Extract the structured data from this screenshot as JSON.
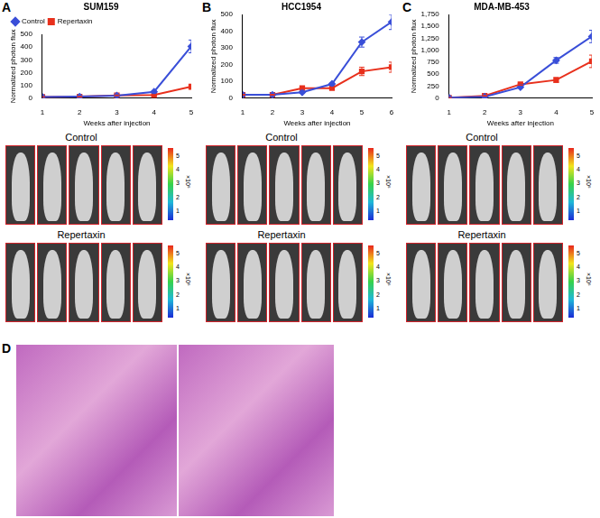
{
  "chart_data": [
    {
      "panel": "A",
      "type": "line",
      "title": "SUM159",
      "x_label": "Weeks after injection",
      "y_label": "Normalized photon flux",
      "categories": [
        1,
        2,
        3,
        4,
        5
      ],
      "ylim": [
        0,
        500
      ],
      "yticks": [
        0,
        100,
        200,
        300,
        400,
        500
      ],
      "legend": "upper left",
      "series": [
        {
          "name": "Control",
          "color": "#3a4fd8",
          "marker": "diamond",
          "values": [
            10,
            12,
            20,
            50,
            405
          ],
          "errors": [
            2,
            2,
            3,
            5,
            50
          ]
        },
        {
          "name": "Repertaxin",
          "color": "#e8301c",
          "marker": "square",
          "values": [
            10,
            12,
            22,
            25,
            90
          ],
          "errors": [
            2,
            2,
            3,
            4,
            20
          ]
        }
      ],
      "group_labels": [
        "Control",
        "Repertaxin"
      ],
      "colorbar": {
        "lim": [
          0.3,
          5.5
        ],
        "ticks": [
          1,
          2,
          3,
          4,
          5
        ],
        "label": "×10⁶"
      }
    },
    {
      "panel": "B",
      "type": "line",
      "title": "HCC1954",
      "x_label": "Weeks after injection",
      "y_label": "Normalized photon flux",
      "categories": [
        1,
        2,
        3,
        4,
        5,
        6
      ],
      "ylim": [
        0,
        500
      ],
      "yticks": [
        0,
        100,
        200,
        300,
        400,
        500
      ],
      "series": [
        {
          "name": "Control",
          "color": "#3a4fd8",
          "marker": "diamond",
          "values": [
            20,
            20,
            35,
            85,
            335,
            455
          ],
          "errors": [
            3,
            3,
            5,
            6,
            30,
            45
          ]
        },
        {
          "name": "Repertaxin",
          "color": "#e8301c",
          "marker": "square",
          "values": [
            20,
            20,
            60,
            60,
            160,
            185
          ],
          "errors": [
            3,
            3,
            6,
            6,
            25,
            30
          ]
        }
      ],
      "group_labels": [
        "Control",
        "Repertaxin"
      ],
      "colorbar": {
        "lim": [
          0.3,
          5.5
        ],
        "ticks": [
          1,
          2,
          3,
          4,
          5
        ],
        "label": "×10⁶"
      }
    },
    {
      "panel": "C",
      "type": "line",
      "title": "MDA-MB-453",
      "x_label": "Weeks after injection",
      "y_label": "Normalized photon flux",
      "categories": [
        1,
        2,
        3,
        4,
        5
      ],
      "ylim": [
        0,
        1750
      ],
      "yticks": [
        0,
        250,
        500,
        750,
        1000,
        1250,
        1500,
        1750
      ],
      "series": [
        {
          "name": "Control",
          "color": "#3a4fd8",
          "marker": "diamond",
          "values": [
            10,
            30,
            230,
            790,
            1290
          ],
          "errors": [
            3,
            6,
            20,
            60,
            130
          ]
        },
        {
          "name": "Repertaxin",
          "color": "#e8301c",
          "marker": "square",
          "values": [
            10,
            50,
            290,
            380,
            770
          ],
          "errors": [
            3,
            6,
            20,
            50,
            130
          ]
        }
      ],
      "group_labels": [
        "Control",
        "Repertaxin"
      ],
      "colorbar": {
        "lim": [
          0.3,
          5.5
        ],
        "ticks": [
          1,
          2,
          3,
          4,
          5
        ],
        "label": "×10⁶"
      }
    }
  ],
  "image_panel": {
    "panel": "D"
  }
}
